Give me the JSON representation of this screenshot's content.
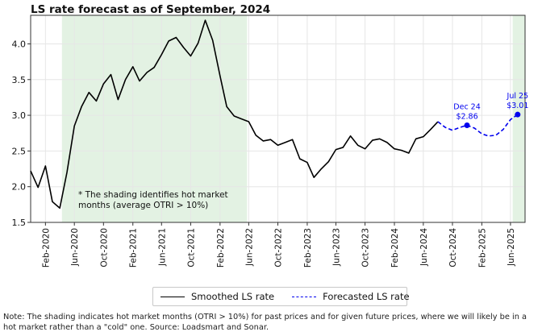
{
  "chart_data": {
    "type": "line",
    "title": "LS rate forecast as of September, 2024",
    "xlabel": "",
    "ylabel": "",
    "ylim": [
      1.5,
      4.4
    ],
    "yticks": [
      1.5,
      2.0,
      2.5,
      3.0,
      3.5,
      4.0
    ],
    "ytick_labels": [
      "1.5",
      "2.0",
      "2.5",
      "3.0",
      "3.5",
      "4.0"
    ],
    "xlim": [
      "2019-12-01",
      "2025-08-01"
    ],
    "xticks": [
      "2020-02-01",
      "2020-06-01",
      "2020-10-01",
      "2021-02-01",
      "2021-06-01",
      "2021-10-01",
      "2022-02-01",
      "2022-06-01",
      "2022-10-01",
      "2023-02-01",
      "2023-06-01",
      "2023-10-01",
      "2024-02-01",
      "2024-06-01",
      "2024-10-01",
      "2025-02-01",
      "2025-06-01"
    ],
    "xtick_labels": [
      "Feb-2020",
      "Jun-2020",
      "Oct-2020",
      "Feb-2021",
      "Jun-2021",
      "Oct-2021",
      "Feb-2022",
      "Jun-2022",
      "Oct-2022",
      "Feb-2023",
      "Jun-2023",
      "Oct-2023",
      "Feb-2024",
      "Jun-2024",
      "Oct-2024",
      "Feb-2025",
      "Jun-2025"
    ],
    "grid": true,
    "legend_position": "bottom-center",
    "shaded_regions": [
      {
        "start": "2020-04-10",
        "end": "2022-05-25",
        "color": "#e3f2e3"
      },
      {
        "start": "2025-06-10",
        "end": "2025-08-01",
        "color": "#e3f2e3"
      }
    ],
    "series": [
      {
        "name": "Smoothed LS rate",
        "style": "solid",
        "color": "#000000",
        "points": [
          [
            "2019-12-01",
            2.22
          ],
          [
            "2020-01-01",
            1.99
          ],
          [
            "2020-02-01",
            2.29
          ],
          [
            "2020-03-01",
            1.79
          ],
          [
            "2020-04-01",
            1.7
          ],
          [
            "2020-05-01",
            2.2
          ],
          [
            "2020-06-01",
            2.85
          ],
          [
            "2020-07-01",
            3.12
          ],
          [
            "2020-08-01",
            3.32
          ],
          [
            "2020-09-01",
            3.2
          ],
          [
            "2020-10-01",
            3.44
          ],
          [
            "2020-11-01",
            3.57
          ],
          [
            "2020-12-01",
            3.22
          ],
          [
            "2021-01-01",
            3.5
          ],
          [
            "2021-02-01",
            3.68
          ],
          [
            "2021-03-01",
            3.48
          ],
          [
            "2021-04-01",
            3.6
          ],
          [
            "2021-05-01",
            3.67
          ],
          [
            "2021-06-01",
            3.85
          ],
          [
            "2021-07-01",
            4.04
          ],
          [
            "2021-08-01",
            4.09
          ],
          [
            "2021-09-01",
            3.95
          ],
          [
            "2021-10-01",
            3.83
          ],
          [
            "2021-11-01",
            4.01
          ],
          [
            "2021-12-01",
            4.33
          ],
          [
            "2022-01-01",
            4.05
          ],
          [
            "2022-02-01",
            3.55
          ],
          [
            "2022-03-01",
            3.12
          ],
          [
            "2022-04-01",
            2.99
          ],
          [
            "2022-05-01",
            2.95
          ],
          [
            "2022-06-01",
            2.91
          ],
          [
            "2022-07-01",
            2.72
          ],
          [
            "2022-08-01",
            2.64
          ],
          [
            "2022-09-01",
            2.66
          ],
          [
            "2022-10-01",
            2.58
          ],
          [
            "2022-11-01",
            2.62
          ],
          [
            "2022-12-01",
            2.66
          ],
          [
            "2023-01-01",
            2.39
          ],
          [
            "2023-02-01",
            2.34
          ],
          [
            "2023-03-01",
            2.13
          ],
          [
            "2023-04-01",
            2.25
          ],
          [
            "2023-05-01",
            2.35
          ],
          [
            "2023-06-01",
            2.52
          ],
          [
            "2023-07-01",
            2.55
          ],
          [
            "2023-08-01",
            2.71
          ],
          [
            "2023-09-01",
            2.58
          ],
          [
            "2023-10-01",
            2.53
          ],
          [
            "2023-11-01",
            2.65
          ],
          [
            "2023-12-01",
            2.67
          ],
          [
            "2024-01-01",
            2.62
          ],
          [
            "2024-02-01",
            2.53
          ],
          [
            "2024-03-01",
            2.51
          ],
          [
            "2024-04-01",
            2.47
          ],
          [
            "2024-05-01",
            2.67
          ],
          [
            "2024-06-01",
            2.7
          ],
          [
            "2024-07-01",
            2.8
          ],
          [
            "2024-08-01",
            2.91
          ]
        ]
      },
      {
        "name": "Forecasted LS rate",
        "style": "dashed",
        "color": "#0000ee",
        "points": [
          [
            "2024-08-01",
            2.91
          ],
          [
            "2024-09-01",
            2.83
          ],
          [
            "2024-10-01",
            2.79
          ],
          [
            "2024-11-01",
            2.83
          ],
          [
            "2024-12-01",
            2.86
          ],
          [
            "2025-01-01",
            2.82
          ],
          [
            "2025-02-01",
            2.74
          ],
          [
            "2025-03-01",
            2.71
          ],
          [
            "2025-04-01",
            2.72
          ],
          [
            "2025-05-01",
            2.8
          ],
          [
            "2025-06-01",
            2.94
          ],
          [
            "2025-07-01",
            3.01
          ]
        ]
      }
    ],
    "highlighted_points": [
      {
        "date": "2024-12-01",
        "value": 2.86,
        "label_line1": "Dec 24",
        "label_line2": "$2.86"
      },
      {
        "date": "2025-07-01",
        "value": 3.01,
        "label_line1": "Jul 25",
        "label_line2": "$3.01"
      }
    ],
    "annotation_line1": "* The shading identifies hot market",
    "annotation_line2": "months (average OTRI > 10%)"
  },
  "legend": {
    "smoothed_label": "Smoothed LS rate",
    "forecast_label": "Forecasted LS rate"
  },
  "note": "Note: The shading indicates hot market months (OTRI > 10%) for past prices and for given future prices, where we will likely be in a hot market rather than a \"cold\" one. Source: Loadsmart and Sonar."
}
